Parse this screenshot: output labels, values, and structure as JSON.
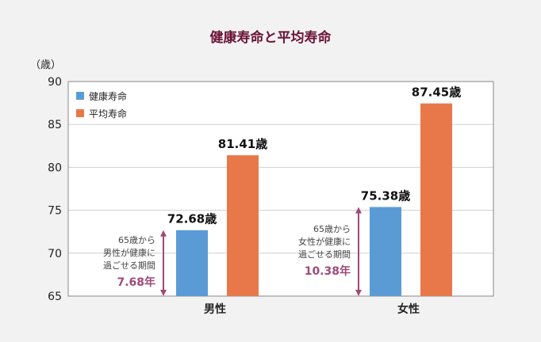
{
  "chart_data": {
    "type": "bar",
    "title": "健康寿命と平均寿命",
    "unit_label": "（歳）",
    "categories": [
      "男性",
      "女性"
    ],
    "series": [
      {
        "name": "健康寿命",
        "color": "#5b9bd5",
        "values": [
          72.68,
          75.38
        ],
        "labels": [
          "72.68歳",
          "75.38歳"
        ]
      },
      {
        "name": "平均寿命",
        "color": "#e8784a",
        "values": [
          81.41,
          87.45
        ],
        "labels": [
          "81.41歳",
          "87.45歳"
        ]
      }
    ],
    "ylim": [
      65,
      90
    ],
    "yticks": [
      65,
      70,
      75,
      80,
      85,
      90
    ],
    "grid": true,
    "legend_position": "top-left",
    "annotations": [
      {
        "category": "男性",
        "lines": [
          "65歳から",
          "男性が健康に",
          "過ごせる期間"
        ],
        "value_text": "7.68年",
        "from": 65,
        "to": 72.68
      },
      {
        "category": "女性",
        "lines": [
          "65歳から",
          "女性が健康に",
          "過ごせる期間"
        ],
        "value_text": "10.38年",
        "from": 65,
        "to": 75.38
      }
    ],
    "annotation_color": "#9e4a78"
  }
}
